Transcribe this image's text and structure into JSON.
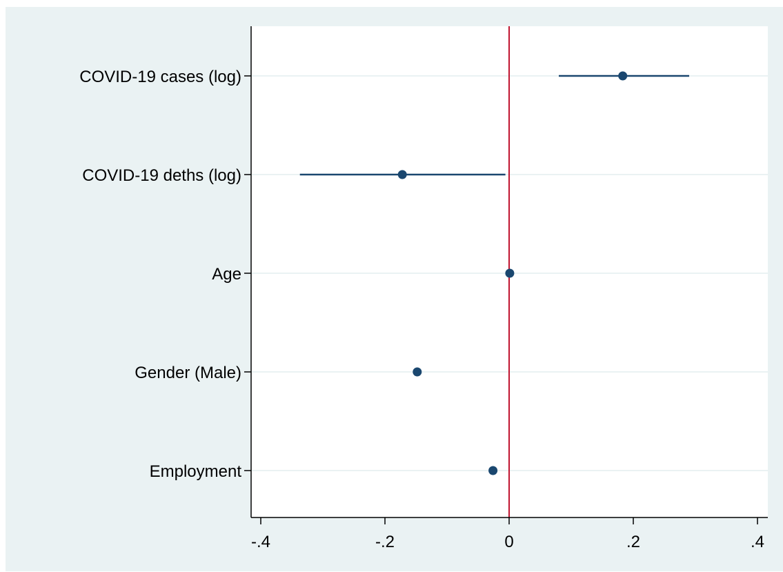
{
  "chart_data": {
    "type": "scatter",
    "subtype": "coefficient-plot",
    "title": "",
    "xlabel": "",
    "ylabel": "",
    "xlim": [
      -0.42,
      0.42
    ],
    "xticks": [
      -0.4,
      -0.2,
      0,
      0.2,
      0.4
    ],
    "xtick_labels": [
      "-.4",
      "-.2",
      "0",
      ".2",
      ".4"
    ],
    "categories": [
      "COVID-19 cases (log)",
      "COVID-19 deths (log)",
      "Age",
      "Gender (Male)",
      "Employment"
    ],
    "estimates": [
      0.183,
      -0.172,
      0.001,
      -0.148,
      -0.026
    ],
    "ci_lower": [
      0.08,
      -0.337,
      0.001,
      -0.148,
      -0.026
    ],
    "ci_upper": [
      0.29,
      -0.006,
      0.001,
      -0.148,
      -0.026
    ],
    "reference_line": 0,
    "grid": "horizontal",
    "legend": "none",
    "colors": {
      "background": "#eaf2f3",
      "plot_area": "#ffffff",
      "marker": "#1a476f",
      "reference_line": "#c0142f",
      "grid": "#eaf2f3",
      "axis": "#000000"
    }
  }
}
